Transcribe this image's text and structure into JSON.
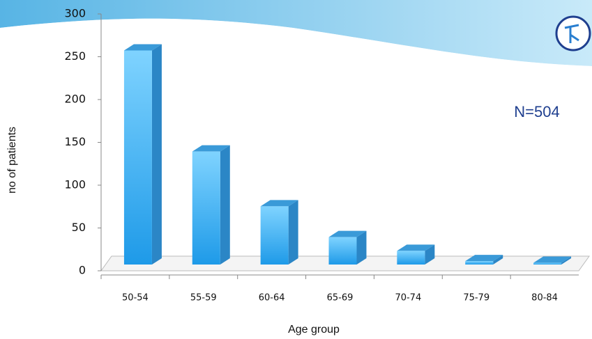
{
  "chart_data": {
    "type": "bar3d",
    "annotation": "N=504",
    "x_label": "Age group",
    "y_label": "no of patients",
    "categories": [
      "50-54",
      "55-59",
      "60-64",
      "65-69",
      "70-74",
      "75-79",
      "80-84"
    ],
    "values": [
      250,
      132,
      68,
      32,
      16,
      4,
      2
    ],
    "color": "#29a3ee",
    "ylim": [
      0,
      300
    ],
    "yticks": [
      0,
      50,
      100,
      150,
      200,
      250,
      300
    ]
  }
}
